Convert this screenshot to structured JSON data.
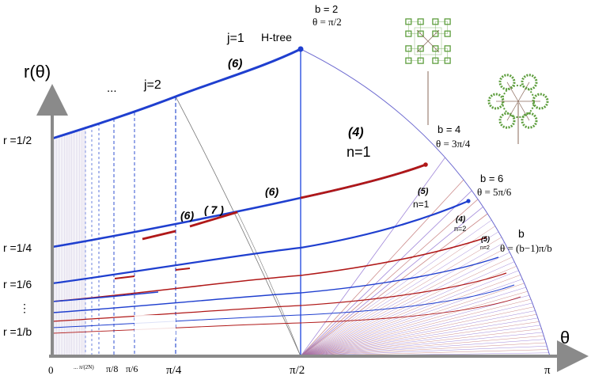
{
  "axes": {
    "y_label": "r(θ)",
    "x_label": "θ",
    "x_ticks": [
      "0",
      "... π/(2N)",
      "π/8",
      "π/6",
      "π/4",
      "π/2",
      "π"
    ],
    "y_ticks": [
      "r =1/2",
      "r =1/4",
      "r =1/6",
      "⋮",
      "r =1/b"
    ]
  },
  "labels": {
    "j1": "j=1",
    "j2": "j=2",
    "dots": "...",
    "htree": "H-tree",
    "b2": "b = 2",
    "b2_theta": "θ = π/2",
    "b4": "b = 4",
    "b4_theta": "θ = 3π/4",
    "b6": "b = 6",
    "b6_theta": "θ = 5π/6",
    "bgen": "b",
    "bgen_theta": "θ = (b−1)π/b",
    "n1_big": "n=1",
    "n1_small": "n=1",
    "n2_a": "n=2",
    "n2_b": "n=2",
    "p6_top": "(6)",
    "p4_big": "(4)",
    "p6_mid": "(6)",
    "p6_left": "(6)",
    "p7": "( 7 )",
    "p5_a": "(5)",
    "p4_small": "(4)",
    "p5_b": "(5)"
  },
  "colors": {
    "blue": "#1f3fcf",
    "red": "#b01818",
    "purple": "#8a5aa8",
    "axis": "#8a8a8a",
    "fractal_green": "#5e9e3e"
  },
  "icons": [
    "square-fractal-icon",
    "hexagon-fractal-icon"
  ]
}
